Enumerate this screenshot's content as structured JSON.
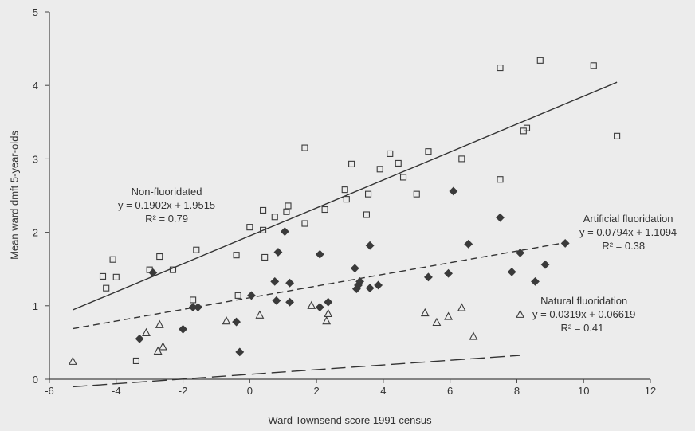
{
  "chart_data": {
    "type": "scatter",
    "xlabel": "Ward Townsend score 1991 census",
    "ylabel": "Mean ward dmft 5-year-olds",
    "xlim": [
      -6,
      12
    ],
    "ylim": [
      0,
      5
    ],
    "xticks": [
      -6,
      -4,
      -2,
      0,
      2,
      4,
      6,
      8,
      10,
      12
    ],
    "yticks": [
      0,
      1,
      2,
      3,
      4,
      5
    ],
    "grid": false,
    "colors": {
      "axis": "#444444",
      "marker": "#3a3a3a",
      "line": "#333333",
      "background": "#ececec"
    },
    "series": [
      {
        "name": "Non-fluoridated",
        "marker": "open-square",
        "annotation": [
          "Non-fluoridated",
          "y = 0.1902x + 1.9515",
          "R² = 0.79"
        ],
        "trendline": {
          "slope": 0.1902,
          "intercept": 1.9515,
          "x_range": [
            -5.3,
            11
          ],
          "style": "solid"
        },
        "points": [
          [
            -4.4,
            1.4
          ],
          [
            -4.3,
            1.24
          ],
          [
            -4.1,
            1.63
          ],
          [
            -4.0,
            1.39
          ],
          [
            -3.4,
            0.25
          ],
          [
            -3.0,
            1.49
          ],
          [
            -2.7,
            1.67
          ],
          [
            -2.3,
            1.49
          ],
          [
            -1.7,
            1.08
          ],
          [
            -1.6,
            1.76
          ],
          [
            -0.4,
            1.69
          ],
          [
            -0.35,
            1.14
          ],
          [
            0,
            2.07
          ],
          [
            0.4,
            2.03
          ],
          [
            0.4,
            2.3
          ],
          [
            0.45,
            1.66
          ],
          [
            0.75,
            2.21
          ],
          [
            1.1,
            2.28
          ],
          [
            1.15,
            2.36
          ],
          [
            1.65,
            2.12
          ],
          [
            1.65,
            3.15
          ],
          [
            2.25,
            2.31
          ],
          [
            2.85,
            2.58
          ],
          [
            2.9,
            2.45
          ],
          [
            3.05,
            2.93
          ],
          [
            3.5,
            2.24
          ],
          [
            3.55,
            2.52
          ],
          [
            3.9,
            2.86
          ],
          [
            4.2,
            3.07
          ],
          [
            4.45,
            2.94
          ],
          [
            4.6,
            2.75
          ],
          [
            5.0,
            2.52
          ],
          [
            5.35,
            3.1
          ],
          [
            6.35,
            3.0
          ],
          [
            7.5,
            4.24
          ],
          [
            7.5,
            2.72
          ],
          [
            8.2,
            3.38
          ],
          [
            8.3,
            3.42
          ],
          [
            8.7,
            4.34
          ],
          [
            10.3,
            4.27
          ],
          [
            11.0,
            3.31
          ]
        ]
      },
      {
        "name": "Artificial fluoridation",
        "marker": "filled-diamond",
        "annotation": [
          "Artificial fluoridation",
          "y = 0.0794x + 1.1094",
          "R² = 0.38"
        ],
        "trendline": {
          "slope": 0.0794,
          "intercept": 1.1094,
          "x_range": [
            -5.3,
            9.5
          ],
          "style": "short-dash"
        },
        "points": [
          [
            -3.3,
            0.55
          ],
          [
            -2.9,
            1.45
          ],
          [
            -2.0,
            0.68
          ],
          [
            -1.7,
            0.98
          ],
          [
            -1.55,
            0.98
          ],
          [
            -0.4,
            0.78
          ],
          [
            -0.3,
            0.37
          ],
          [
            0.05,
            1.14
          ],
          [
            0.75,
            1.33
          ],
          [
            0.8,
            1.07
          ],
          [
            0.85,
            1.73
          ],
          [
            1.05,
            2.01
          ],
          [
            1.2,
            1.31
          ],
          [
            1.2,
            1.05
          ],
          [
            2.1,
            1.7
          ],
          [
            2.1,
            0.98
          ],
          [
            2.35,
            1.05
          ],
          [
            3.15,
            1.51
          ],
          [
            3.2,
            1.23
          ],
          [
            3.25,
            1.28
          ],
          [
            3.3,
            1.33
          ],
          [
            3.6,
            1.82
          ],
          [
            3.6,
            1.24
          ],
          [
            3.85,
            1.28
          ],
          [
            5.35,
            1.39
          ],
          [
            5.95,
            1.44
          ],
          [
            6.1,
            2.56
          ],
          [
            6.55,
            1.84
          ],
          [
            7.5,
            2.2
          ],
          [
            7.85,
            1.46
          ],
          [
            8.1,
            1.72
          ],
          [
            8.55,
            1.33
          ],
          [
            8.85,
            1.56
          ],
          [
            9.45,
            1.85
          ]
        ]
      },
      {
        "name": "Natural fluoridation",
        "marker": "open-triangle",
        "annotation": [
          "Natural fluoridation",
          "y = 0.0319x + 0.06619",
          "R² = 0.41"
        ],
        "trendline": {
          "slope": 0.0319,
          "intercept": 0.06619,
          "x_range": [
            -5.3,
            8.1
          ],
          "style": "long-dash"
        },
        "points": [
          [
            -5.3,
            0.24
          ],
          [
            -3.1,
            0.63
          ],
          [
            -2.75,
            0.38
          ],
          [
            -2.7,
            0.74
          ],
          [
            -2.6,
            0.44
          ],
          [
            -0.7,
            0.79
          ],
          [
            0.3,
            0.87
          ],
          [
            1.85,
            1.0
          ],
          [
            2.3,
            0.79
          ],
          [
            2.35,
            0.89
          ],
          [
            5.25,
            0.9
          ],
          [
            5.6,
            0.77
          ],
          [
            5.95,
            0.85
          ],
          [
            6.35,
            0.97
          ],
          [
            6.7,
            0.58
          ],
          [
            8.1,
            0.88
          ]
        ]
      }
    ]
  }
}
